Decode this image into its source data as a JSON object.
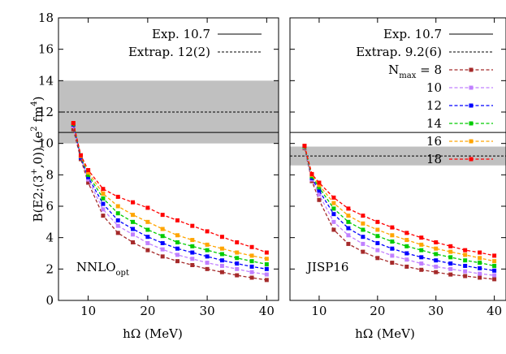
{
  "chart_data": {
    "type": "line",
    "ylabel": {
      "base": "B(E2;(3",
      "sup1": "+",
      "mid": ",0)) (e",
      "sup2": "2",
      "mid2": " fm",
      "sup3": "4",
      "end": ")"
    },
    "ylim": [
      0,
      18
    ],
    "yticks": [
      "0",
      "2",
      "4",
      "6",
      "8",
      "10",
      "12",
      "14",
      "16",
      "18"
    ],
    "xticks": [
      "10",
      "20",
      "30",
      "40"
    ],
    "xlim": [
      5,
      42
    ],
    "panels": [
      {
        "label": {
          "main": "NNLO",
          "sub": "opt"
        },
        "xlabel": "hΩ (MeV)",
        "exp": {
          "label": "Exp.",
          "value_label": "10.7",
          "value": 10.7
        },
        "extrap": {
          "label": "Extrap.",
          "value_label": "12(2)",
          "value": 12,
          "band": [
            10,
            14
          ]
        },
        "series": [
          {
            "nmax": 8,
            "color": "#a52a2a",
            "x": [
              7.5,
              8.75,
              10,
              12.5,
              15,
              17.5,
              20,
              22.5,
              25,
              27.5,
              30,
              32.5,
              35,
              37.5,
              40
            ],
            "y": [
              10.9,
              9.0,
              7.5,
              5.4,
              4.3,
              3.7,
              3.2,
              2.8,
              2.5,
              2.25,
              2.0,
              1.8,
              1.6,
              1.45,
              1.3
            ]
          },
          {
            "nmax": 10,
            "color": "#c080ff",
            "x": [
              7.5,
              8.75,
              10,
              12.5,
              15,
              17.5,
              20,
              22.5,
              25,
              27.5,
              30,
              32.5,
              35,
              37.5,
              40
            ],
            "y": [
              11.1,
              9.1,
              7.7,
              5.8,
              4.75,
              4.2,
              3.65,
              3.25,
              2.9,
              2.65,
              2.4,
              2.2,
              2.0,
              1.8,
              1.65
            ]
          },
          {
            "nmax": 12,
            "color": "#0000ff",
            "x": [
              7.5,
              8.75,
              10,
              12.5,
              15,
              17.5,
              20,
              22.5,
              25,
              27.5,
              30,
              32.5,
              35,
              37.5,
              40
            ],
            "y": [
              11.2,
              9.1,
              7.85,
              6.15,
              5.1,
              4.55,
              4.05,
              3.65,
              3.3,
              3.05,
              2.8,
              2.55,
              2.35,
              2.15,
              2.0
            ]
          },
          {
            "nmax": 14,
            "color": "#00cc00",
            "x": [
              7.5,
              8.75,
              10,
              12.5,
              15,
              17.5,
              20,
              22.5,
              25,
              27.5,
              30,
              32.5,
              35,
              37.5,
              40
            ],
            "y": [
              11.25,
              9.2,
              8.0,
              6.5,
              5.55,
              5.0,
              4.5,
              4.1,
              3.7,
              3.45,
              3.2,
              2.95,
              2.7,
              2.5,
              2.3
            ]
          },
          {
            "nmax": 16,
            "color": "#ffa500",
            "x": [
              7.5,
              8.75,
              10,
              12.5,
              15,
              17.5,
              20,
              22.5,
              25,
              27.5,
              30,
              32.5,
              35,
              37.5,
              40
            ],
            "y": [
              11.3,
              9.2,
              8.15,
              6.8,
              6.0,
              5.45,
              5.0,
              4.55,
              4.15,
              3.85,
              3.55,
              3.3,
              3.05,
              2.85,
              2.65
            ]
          },
          {
            "nmax": 18,
            "color": "#ff0000",
            "x": [
              7.5,
              8.75,
              10,
              12.5,
              15,
              17.5,
              20,
              22.5,
              25,
              27.5,
              30,
              32.5,
              35,
              37.5,
              40
            ],
            "y": [
              11.3,
              9.25,
              8.3,
              7.1,
              6.6,
              6.25,
              5.9,
              5.45,
              5.1,
              4.75,
              4.4,
              4.05,
              3.7,
              3.4,
              3.05
            ]
          }
        ]
      },
      {
        "label": {
          "main": "JISP16",
          "sub": ""
        },
        "xlabel": "hΩ (MeV)",
        "exp": {
          "label": "Exp.",
          "value_label": "10.7",
          "value": 10.7
        },
        "extrap": {
          "label": "Extrap.",
          "value_label": "9.2(6)",
          "value": 9.2,
          "band": [
            8.6,
            9.8
          ]
        },
        "legend_title": {
          "main": "N",
          "sub": "max",
          "eq": "="
        },
        "series": [
          {
            "nmax": 8,
            "color": "#a52a2a",
            "x": [
              7.5,
              8.75,
              10,
              12.5,
              15,
              17.5,
              20,
              22.5,
              25,
              27.5,
              30,
              32.5,
              35,
              37.5,
              40
            ],
            "y": [
              9.7,
              7.6,
              6.4,
              4.5,
              3.6,
              3.1,
              2.7,
              2.4,
              2.15,
              1.95,
              1.8,
              1.65,
              1.55,
              1.45,
              1.35
            ]
          },
          {
            "nmax": 10,
            "color": "#c080ff",
            "x": [
              7.5,
              8.75,
              10,
              12.5,
              15,
              17.5,
              20,
              22.5,
              25,
              27.5,
              30,
              32.5,
              35,
              37.5,
              40
            ],
            "y": [
              9.75,
              7.7,
              6.75,
              5.0,
              4.15,
              3.6,
              3.2,
              2.85,
              2.6,
              2.35,
              2.15,
              2.0,
              1.85,
              1.7,
              1.6
            ]
          },
          {
            "nmax": 12,
            "color": "#0000ff",
            "x": [
              7.5,
              8.75,
              10,
              12.5,
              15,
              17.5,
              20,
              22.5,
              25,
              27.5,
              30,
              32.5,
              35,
              37.5,
              40
            ],
            "y": [
              9.8,
              7.8,
              7.0,
              5.5,
              4.6,
              4.05,
              3.65,
              3.3,
              3.0,
              2.75,
              2.55,
              2.35,
              2.2,
              2.05,
              1.9
            ]
          },
          {
            "nmax": 14,
            "color": "#00cc00",
            "x": [
              7.5,
              8.75,
              10,
              12.5,
              15,
              17.5,
              20,
              22.5,
              25,
              27.5,
              30,
              32.5,
              35,
              37.5,
              40
            ],
            "y": [
              9.8,
              7.9,
              7.2,
              5.85,
              5.0,
              4.5,
              4.1,
              3.75,
              3.45,
              3.2,
              2.95,
              2.75,
              2.55,
              2.4,
              2.2
            ]
          },
          {
            "nmax": 16,
            "color": "#ffa500",
            "x": [
              7.5,
              8.75,
              10,
              12.5,
              15,
              17.5,
              20,
              22.5,
              25,
              27.5,
              30,
              32.5,
              35,
              37.5,
              40
            ],
            "y": [
              9.85,
              8.0,
              7.35,
              6.2,
              5.4,
              4.9,
              4.5,
              4.15,
              3.85,
              3.55,
              3.3,
              3.1,
              2.9,
              2.7,
              2.5
            ]
          },
          {
            "nmax": 18,
            "color": "#ff0000",
            "x": [
              7.5,
              8.75,
              10,
              12.5,
              15,
              17.5,
              20,
              22.5,
              25,
              27.5,
              30,
              32.5,
              35,
              37.5,
              40
            ],
            "y": [
              9.85,
              8.05,
              7.5,
              6.55,
              5.85,
              5.4,
              5.0,
              4.65,
              4.3,
              4.0,
              3.7,
              3.45,
              3.2,
              3.05,
              2.85
            ]
          }
        ]
      }
    ]
  }
}
